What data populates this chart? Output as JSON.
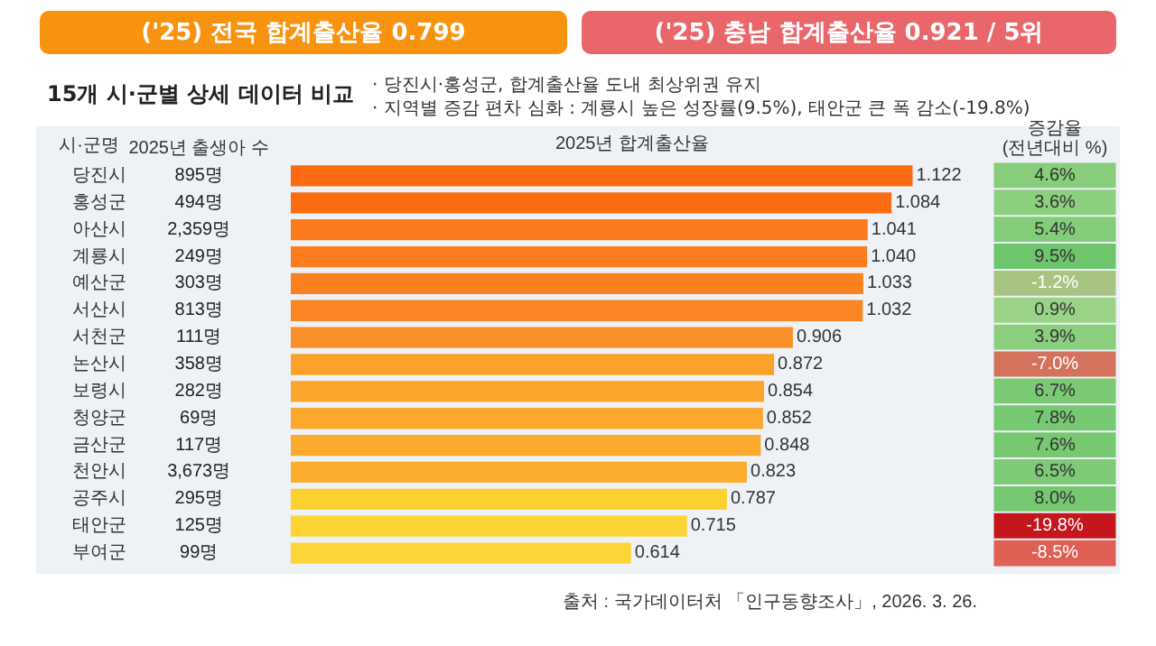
{
  "chart_data": [
    {
      "type": "other",
      "title": "15개 시·군별 상세 데이터 비교",
      "subtitle": "('25) 전국 합계출산율 0.799",
      "annotations": [
        "('25) 충남 합계출산율 0.921 / 5위",
        "· 당진시·홍성군, 합계출산율 도내 최상위권 유지",
        "· 지역별 증감 편차 심화 : 계룡시 높은 성장률(9.5%), 태안군 큰 폭 감소(-19.8%)"
      ]
    },
    {
      "type": "heatmap",
      "ylabel": "시·군명",
      "categories": [
        "2025년 출생아 수"
      ],
      "y_categories": [
        "당진시",
        "홍성군",
        "아산시",
        "계룡시",
        "예산군",
        "서산시",
        "서천군",
        "논산시",
        "보령시",
        "청양군",
        "금산군",
        "천안시",
        "공주시",
        "태안군",
        "부여군"
      ],
      "cells": [
        [
          895
        ],
        [
          494
        ],
        [
          2359
        ],
        [
          249
        ],
        [
          303
        ],
        [
          813
        ],
        [
          111
        ],
        [
          358
        ],
        [
          282
        ],
        [
          69
        ],
        [
          117
        ],
        [
          3673
        ],
        [
          295
        ],
        [
          125
        ],
        [
          99
        ]
      ],
      "cell_labels": [
        [
          "895명"
        ],
        [
          "494명"
        ],
        [
          "2,359명"
        ],
        [
          "249명"
        ],
        [
          "303명"
        ],
        [
          "813명"
        ],
        [
          "111명"
        ],
        [
          "358명"
        ],
        [
          "282명"
        ],
        [
          "69명"
        ],
        [
          "117명"
        ],
        [
          "3,673명"
        ],
        [
          "295명"
        ],
        [
          "125명"
        ],
        [
          "99명"
        ]
      ]
    },
    {
      "type": "bar",
      "orientation": "horizontal",
      "title": "2025년 합계출산율",
      "categories": [
        null,
        null,
        null,
        null,
        null,
        null,
        null,
        null,
        null,
        null,
        null,
        null,
        null,
        null,
        null
      ],
      "value_labels": [
        "1.122",
        "1.084",
        "1.041",
        "1.040",
        "1.033",
        "1.032",
        "0.906",
        "0.872",
        "0.854",
        "0.852",
        "0.848",
        "0.823",
        "0.787",
        "0.715",
        "0.614"
      ],
      "values": [
        1.122,
        1.084,
        1.041,
        1.04,
        1.033,
        1.032,
        0.906,
        0.872,
        0.854,
        0.852,
        0.848,
        0.823,
        0.787,
        0.715,
        0.614
      ],
      "colors": [
        "#fb6a10",
        "#fb6c12",
        "#fb7a1c",
        "#fb7d1e",
        "#fb8020",
        "#fb8423",
        "#fb8f27",
        "#fba22a",
        "#fba52b",
        "#fba82c",
        "#fbaa2d",
        "#fbad2e",
        "#fcd12e",
        "#fcd433",
        "#fcd637"
      ],
      "annotations": [
        "출처 : 국가데이터처 「인구동향조사」, 2026. 3. 26."
      ]
    },
    {
      "type": "heatmap",
      "categories": [
        "증감율\n(전년대비 %)"
      ],
      "y_categories": [
        null,
        null,
        null,
        null,
        null,
        null,
        null,
        null,
        null,
        null,
        null,
        null,
        null,
        null,
        null
      ],
      "tick_labels": "x",
      "cells": [
        [
          4.6
        ],
        [
          3.6
        ],
        [
          5.4
        ],
        [
          9.5
        ],
        [
          -1.2
        ],
        [
          0.9
        ],
        [
          3.9
        ],
        [
          -7.0
        ],
        [
          6.7
        ],
        [
          7.8
        ],
        [
          7.6
        ],
        [
          6.5
        ],
        [
          8.0
        ],
        [
          -19.8
        ],
        [
          -8.5
        ]
      ],
      "cell_labels": [
        [
          "4.6%"
        ],
        [
          "3.6%"
        ],
        [
          "5.4%"
        ],
        [
          "9.5%"
        ],
        [
          "-1.2%"
        ],
        [
          "0.9%"
        ],
        [
          "3.9%"
        ],
        [
          "-7.0%"
        ],
        [
          "6.7%"
        ],
        [
          "7.8%"
        ],
        [
          "7.6%"
        ],
        [
          "6.5%"
        ],
        [
          "8.0%"
        ],
        [
          "-19.8%"
        ],
        [
          "-8.5%"
        ]
      ]
    }
  ]
}
